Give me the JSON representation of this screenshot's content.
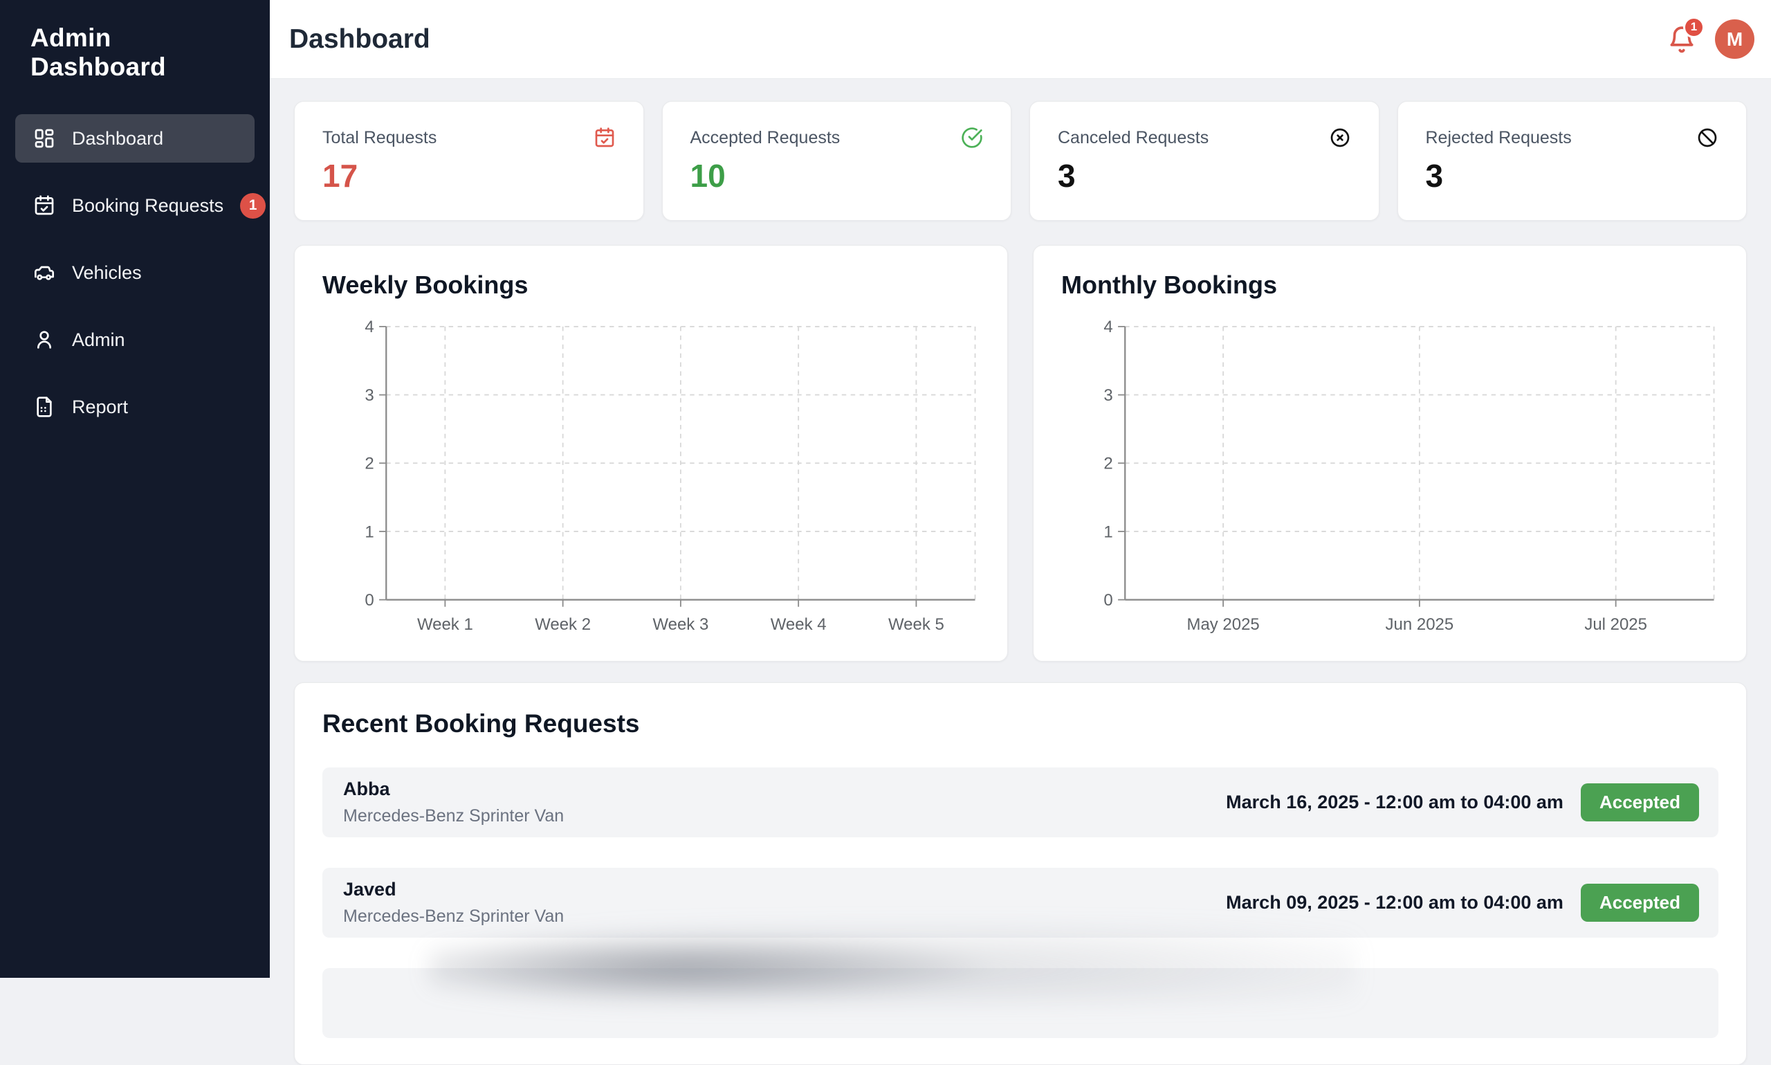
{
  "app": {
    "title": "Admin Dashboard"
  },
  "sidebar": {
    "items": [
      {
        "label": "Dashboard",
        "icon": "dashboard-icon",
        "active": true
      },
      {
        "label": "Booking Requests",
        "icon": "calendar-check-icon",
        "badge": "1"
      },
      {
        "label": "Vehicles",
        "icon": "van-icon"
      },
      {
        "label": "Admin",
        "icon": "user-icon"
      },
      {
        "label": "Report",
        "icon": "report-icon"
      }
    ]
  },
  "header": {
    "title": "Dashboard",
    "notification_count": "1",
    "avatar_initial": "M"
  },
  "stats": [
    {
      "label": "Total Requests",
      "value": "17",
      "value_color": "#d5544a",
      "icon": "calendar-check-icon",
      "icon_color": "#e05a4e"
    },
    {
      "label": "Accepted Requests",
      "value": "10",
      "value_color": "#3d9e48",
      "icon": "circle-check-icon",
      "icon_color": "#4cb157"
    },
    {
      "label": "Canceled Requests",
      "value": "3",
      "value_color": "#111111",
      "icon": "circle-x-icon",
      "icon_color": "#111111"
    },
    {
      "label": "Rejected Requests",
      "value": "3",
      "value_color": "#111111",
      "icon": "ban-icon",
      "icon_color": "#111111"
    }
  ],
  "chart_data": [
    {
      "type": "line",
      "title": "Weekly Bookings",
      "categories": [
        "Week 1",
        "Week 2",
        "Week 3",
        "Week 4",
        "Week 5"
      ],
      "series": [],
      "ylim": [
        0,
        4
      ],
      "yticks": [
        0,
        1,
        2,
        3,
        4
      ],
      "grid": true,
      "legend": "none",
      "note": "empty plot - axes and dashed gridlines only, no data series drawn"
    },
    {
      "type": "line",
      "title": "Monthly Bookings",
      "categories": [
        "May 2025",
        "Jun 2025",
        "Jul 2025"
      ],
      "series": [],
      "ylim": [
        0,
        4
      ],
      "yticks": [
        0,
        1,
        2,
        3,
        4
      ],
      "grid": true,
      "legend": "none",
      "note": "empty plot - axes and dashed gridlines only, no data series drawn"
    }
  ],
  "recent": {
    "title": "Recent Booking Requests",
    "rows": [
      {
        "name": "Abba",
        "vehicle": "Mercedes-Benz Sprinter Van",
        "datetime": "March 16, 2025 - 12:00 am to 04:00 am",
        "status": "Accepted"
      },
      {
        "name": "Javed",
        "vehicle": "Mercedes-Benz Sprinter Van",
        "datetime": "March 09, 2025 - 12:00 am to 04:00 am",
        "status": "Accepted"
      }
    ],
    "partial_third_row": true
  },
  "colors": {
    "sidebar_bg": "#131a2b",
    "active_item_bg": "#3e4350",
    "accent_red": "#d9564a",
    "badge_red": "#dd5147",
    "status_green": "#4ba152",
    "page_bg": "#f0f1f4",
    "row_bg": "#f3f4f6"
  }
}
